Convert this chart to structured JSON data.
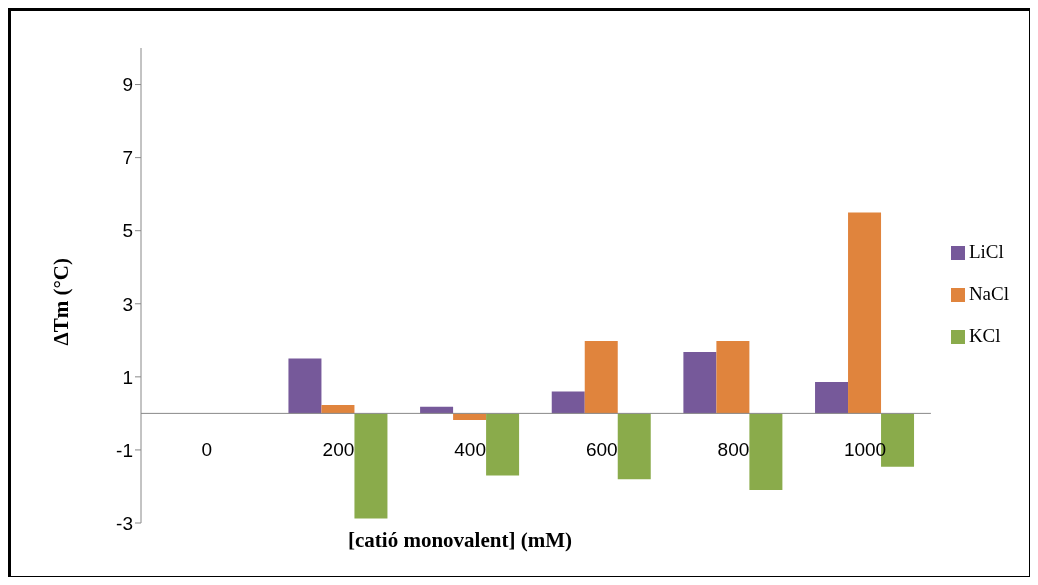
{
  "chart_data": {
    "type": "bar",
    "xlabel": "[catió monovalent] (mM)",
    "ylabel": "ΔTm (°C)",
    "categories": [
      "0",
      "200",
      "400",
      "600",
      "800",
      "1000"
    ],
    "series": [
      {
        "name": "LiCl",
        "color": "#76599a",
        "values": [
          0,
          1.5,
          0.18,
          0.6,
          1.68,
          0.86
        ]
      },
      {
        "name": "NaCl",
        "color": "#e0843d",
        "values": [
          0,
          0.23,
          -0.18,
          1.98,
          1.98,
          5.5
        ]
      },
      {
        "name": "KCl",
        "color": "#8aab4b",
        "values": [
          0,
          -2.88,
          -1.7,
          -1.8,
          -2.1,
          -1.46
        ]
      }
    ],
    "ylim": [
      -3,
      10
    ],
    "yticks": [
      -3,
      -1,
      1,
      3,
      5,
      7,
      9
    ],
    "legend": "right"
  }
}
